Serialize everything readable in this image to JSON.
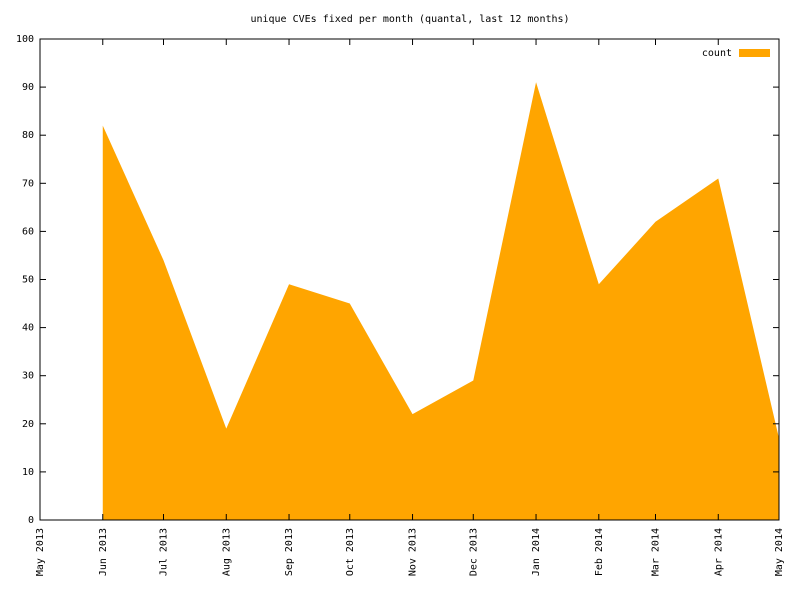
{
  "chart_data": {
    "type": "area",
    "title": "unique CVEs fixed per month (quantal, last 12 months)",
    "x": [
      "2013-06",
      "2013-07",
      "2013-08",
      "2013-09",
      "2013-10",
      "2013-11",
      "2013-12",
      "2014-01",
      "2014-02",
      "2014-03",
      "2014-04",
      "2014-05"
    ],
    "series": [
      {
        "name": "count",
        "color": "#ffa500",
        "values": [
          82,
          54,
          19,
          49,
          45,
          22,
          29,
          91,
          49,
          62,
          71,
          17
        ]
      }
    ],
    "xlim": [
      "2013-05",
      "2014-05"
    ],
    "xticks": [
      {
        "value": "2013-05",
        "label": "May 2013"
      },
      {
        "value": "2013-06",
        "label": "Jun 2013"
      },
      {
        "value": "2013-07",
        "label": "Jul 2013"
      },
      {
        "value": "2013-08",
        "label": "Aug 2013"
      },
      {
        "value": "2013-09",
        "label": "Sep 2013"
      },
      {
        "value": "2013-10",
        "label": "Oct 2013"
      },
      {
        "value": "2013-11",
        "label": "Nov 2013"
      },
      {
        "value": "2013-12",
        "label": "Dec 2013"
      },
      {
        "value": "2014-01",
        "label": "Jan 2014"
      },
      {
        "value": "2014-02",
        "label": "Feb 2014"
      },
      {
        "value": "2014-03",
        "label": "Mar 2014"
      },
      {
        "value": "2014-04",
        "label": "Apr 2014"
      },
      {
        "value": "2014-05",
        "label": "May 2014"
      }
    ],
    "ylim": [
      0,
      100
    ],
    "yticks": [
      0,
      10,
      20,
      30,
      40,
      50,
      60,
      70,
      80,
      90,
      100
    ],
    "legend": "top-right",
    "grid": false
  }
}
